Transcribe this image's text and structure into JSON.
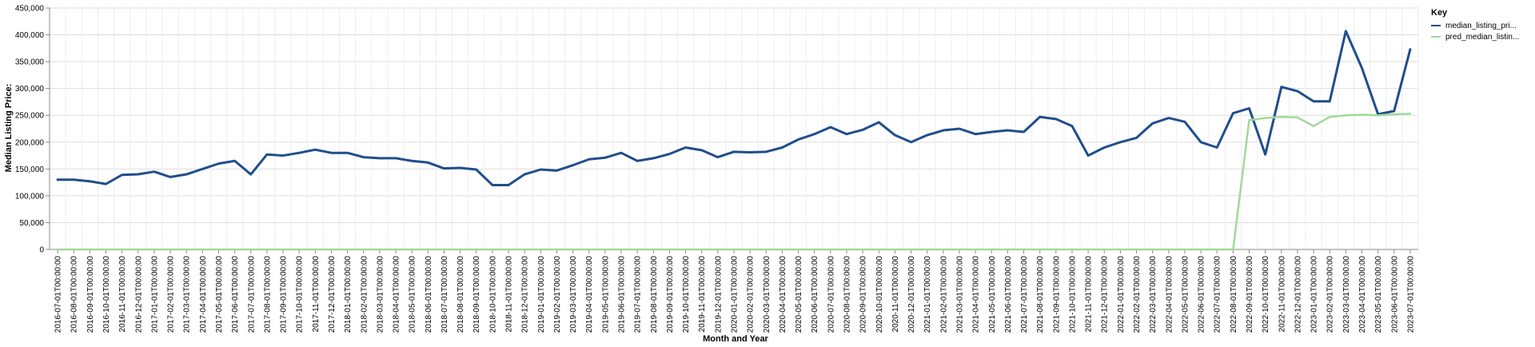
{
  "chart_data": {
    "type": "line",
    "title": "",
    "xlabel": "Month and Year",
    "ylabel": "Median Listing Price:",
    "ylim": [
      0,
      450000
    ],
    "yticks": [
      0,
      50000,
      100000,
      150000,
      200000,
      250000,
      300000,
      350000,
      400000,
      450000
    ],
    "ytick_labels": [
      "0",
      "50,000",
      "100,000",
      "150,000",
      "200,000",
      "250,000",
      "300,000",
      "350,000",
      "400,000",
      "450,000"
    ],
    "grid": true,
    "legend": {
      "title": "Key",
      "position": "right",
      "entries": [
        {
          "label": "median_listing_pri...",
          "color": "#1f4e8c"
        },
        {
          "label": "pred_median_listin...",
          "color": "#a1d99b"
        }
      ]
    },
    "x": [
      "2016-07-01T00:00:00",
      "2016-08-01T00:00:00",
      "2016-09-01T00:00:00",
      "2016-10-01T00:00:00",
      "2016-11-01T00:00:00",
      "2016-12-01T00:00:00",
      "2017-01-01T00:00:00",
      "2017-02-01T00:00:00",
      "2017-03-01T00:00:00",
      "2017-04-01T00:00:00",
      "2017-05-01T00:00:00",
      "2017-06-01T00:00:00",
      "2017-07-01T00:00:00",
      "2017-08-01T00:00:00",
      "2017-09-01T00:00:00",
      "2017-10-01T00:00:00",
      "2017-11-01T00:00:00",
      "2017-12-01T00:00:00",
      "2018-01-01T00:00:00",
      "2018-02-01T00:00:00",
      "2018-03-01T00:00:00",
      "2018-04-01T00:00:00",
      "2018-05-01T00:00:00",
      "2018-06-01T00:00:00",
      "2018-07-01T00:00:00",
      "2018-08-01T00:00:00",
      "2018-09-01T00:00:00",
      "2018-10-01T00:00:00",
      "2018-11-01T00:00:00",
      "2018-12-01T00:00:00",
      "2019-01-01T00:00:00",
      "2019-02-01T00:00:00",
      "2019-03-01T00:00:00",
      "2019-04-01T00:00:00",
      "2019-05-01T00:00:00",
      "2019-06-01T00:00:00",
      "2019-07-01T00:00:00",
      "2019-08-01T00:00:00",
      "2019-09-01T00:00:00",
      "2019-10-01T00:00:00",
      "2019-11-01T00:00:00",
      "2019-12-01T00:00:00",
      "2020-01-01T00:00:00",
      "2020-02-01T00:00:00",
      "2020-03-01T00:00:00",
      "2020-04-01T00:00:00",
      "2020-05-01T00:00:00",
      "2020-06-01T00:00:00",
      "2020-07-01T00:00:00",
      "2020-08-01T00:00:00",
      "2020-09-01T00:00:00",
      "2020-10-01T00:00:00",
      "2020-11-01T00:00:00",
      "2020-12-01T00:00:00",
      "2021-01-01T00:00:00",
      "2021-02-01T00:00:00",
      "2021-03-01T00:00:00",
      "2021-04-01T00:00:00",
      "2021-05-01T00:00:00",
      "2021-06-01T00:00:00",
      "2021-07-01T00:00:00",
      "2021-08-01T00:00:00",
      "2021-09-01T00:00:00",
      "2021-10-01T00:00:00",
      "2021-11-01T00:00:00",
      "2021-12-01T00:00:00",
      "2022-01-01T00:00:00",
      "2022-02-01T00:00:00",
      "2022-03-01T00:00:00",
      "2022-04-01T00:00:00",
      "2022-05-01T00:00:00",
      "2022-06-01T00:00:00",
      "2022-07-01T00:00:00",
      "2022-08-01T00:00:00",
      "2022-09-01T00:00:00",
      "2022-10-01T00:00:00",
      "2022-11-01T00:00:00",
      "2022-12-01T00:00:00",
      "2023-01-01T00:00:00",
      "2023-02-01T00:00:00",
      "2023-03-01T00:00:00",
      "2023-04-01T00:00:00",
      "2023-05-01T00:00:00",
      "2023-06-01T00:00:00",
      "2023-07-01T00:00:00"
    ],
    "series": [
      {
        "name": "median_listing_pri...",
        "color": "#1f4e8c",
        "values": [
          130000,
          130000,
          127000,
          122000,
          139000,
          140000,
          145000,
          135000,
          140000,
          150000,
          160000,
          165000,
          140000,
          177000,
          175000,
          180000,
          186000,
          180000,
          180000,
          172000,
          170000,
          170000,
          165000,
          162000,
          151000,
          152000,
          149000,
          120000,
          120000,
          140000,
          149000,
          147000,
          157000,
          168000,
          171000,
          180000,
          165000,
          170000,
          178000,
          190000,
          185000,
          172000,
          182000,
          181000,
          182000,
          190000,
          205000,
          215000,
          228000,
          215000,
          223000,
          237000,
          213000,
          200000,
          213000,
          222000,
          225000,
          215000,
          219000,
          222000,
          219000,
          247000,
          243000,
          230000,
          175000,
          190000,
          200000,
          208000,
          235000,
          245000,
          238000,
          200000,
          190000,
          254000,
          263000,
          177000,
          303000,
          295000,
          276000,
          276000,
          407000,
          338000,
          252000,
          258000,
          373000
        ]
      },
      {
        "name": "pred_median_listin...",
        "color": "#a1d99b",
        "values": [
          0,
          0,
          0,
          0,
          0,
          0,
          0,
          0,
          0,
          0,
          0,
          0,
          0,
          0,
          0,
          0,
          0,
          0,
          0,
          0,
          0,
          0,
          0,
          0,
          0,
          0,
          0,
          0,
          0,
          0,
          0,
          0,
          0,
          0,
          0,
          0,
          0,
          0,
          0,
          0,
          0,
          0,
          0,
          0,
          0,
          0,
          0,
          0,
          0,
          0,
          0,
          0,
          0,
          0,
          0,
          0,
          0,
          0,
          0,
          0,
          0,
          0,
          0,
          0,
          0,
          0,
          0,
          0,
          0,
          0,
          0,
          0,
          0,
          0,
          241000,
          245000,
          247000,
          246000,
          230000,
          247000,
          250000,
          251000,
          250000,
          252000,
          253000
        ]
      }
    ]
  }
}
